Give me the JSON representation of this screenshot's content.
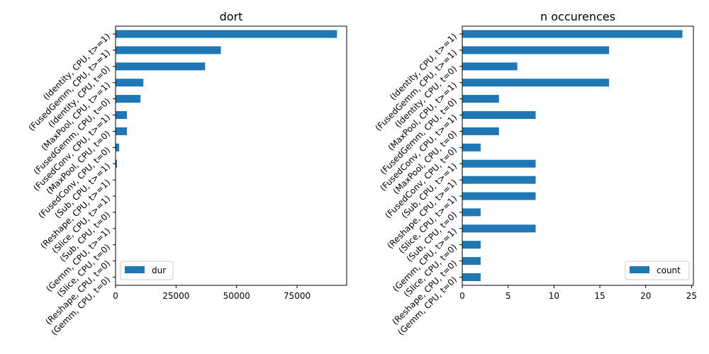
{
  "colors": {
    "bar": "#1f77b4",
    "axis": "#000000",
    "legend_border": "#cccccc"
  },
  "categories": [
    "(Identity, CPU, t>=1)",
    "(FusedGemm, CPU, t>=1)",
    "(Identity, CPU, t=0)",
    "(MaxPool, CPU, t>=1)",
    "(FusedGemm, CPU, t=0)",
    "(FusedConv, CPU, t>=1)",
    "(MaxPool, CPU, t=0)",
    "(FusedConv, CPU, t=0)",
    "(Sub, CPU, t>=1)",
    "(Reshape, CPU, t>=1)",
    "(Slice, CPU, t>=1)",
    "(Sub, CPU, t=0)",
    "(Gemm, CPU, t>=1)",
    "(Slice, CPU, t=0)",
    "(Reshape, CPU, t=0)",
    "(Gemm, CPU, t=0)"
  ],
  "chart_data": [
    {
      "type": "bar",
      "orientation": "horizontal",
      "title": "dort",
      "categories_ref": "categories",
      "series": [
        {
          "name": "dur",
          "values": [
            91500,
            43500,
            37000,
            11500,
            10300,
            4700,
            4700,
            1500,
            600,
            150,
            120,
            100,
            80,
            60,
            50,
            40
          ]
        }
      ],
      "xlim": [
        0,
        95500
      ],
      "xticks": [
        0,
        25000,
        50000,
        75000
      ],
      "xtick_labels": [
        "0",
        "25000",
        "50000",
        "75000"
      ],
      "legend": {
        "position": "lower-left",
        "label": "dur"
      }
    },
    {
      "type": "bar",
      "orientation": "horizontal",
      "title": "n occurences",
      "categories_ref": "categories",
      "series": [
        {
          "name": "count",
          "values": [
            24,
            16,
            6,
            16,
            4,
            8,
            4,
            2,
            8,
            8,
            8,
            2,
            8,
            2,
            2,
            2
          ]
        }
      ],
      "xlim": [
        0,
        25.2
      ],
      "xticks": [
        0,
        5,
        10,
        15,
        20,
        25
      ],
      "xtick_labels": [
        "0",
        "5",
        "10",
        "15",
        "20",
        "25"
      ],
      "legend": {
        "position": "lower-right",
        "label": "count"
      }
    }
  ]
}
